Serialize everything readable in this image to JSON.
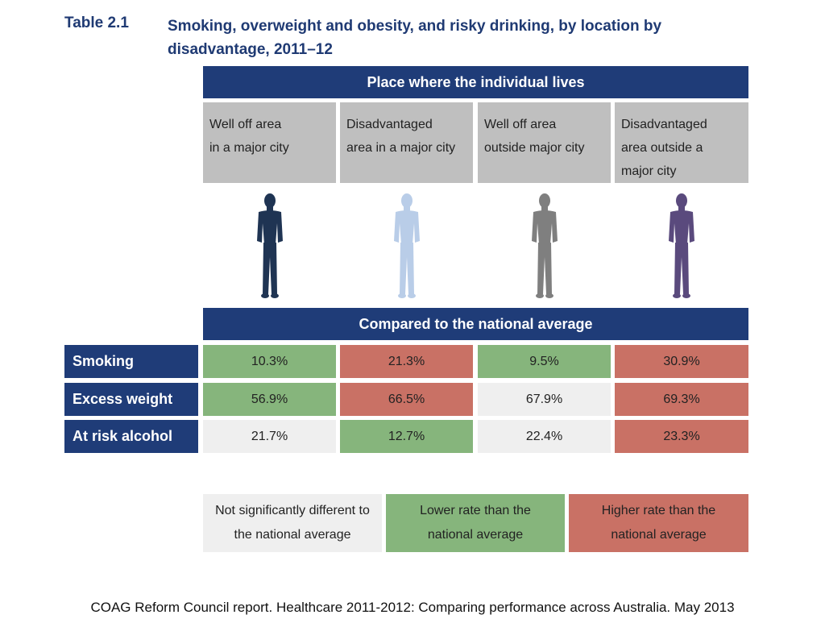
{
  "table_number": "Table 2.1",
  "table_title": "Smoking, overweight and obesity, and risky drinking, by location by disadvantage, 2011–12",
  "place_header": "Place where the individual lives",
  "locations": [
    {
      "line1": "Well off area",
      "line2": "in a major city",
      "line3": "",
      "color": "#1f3453"
    },
    {
      "line1": "Disadvantaged",
      "line2": "area in a major city",
      "line3": "",
      "color": "#b9cde8"
    },
    {
      "line1": "Well off area",
      "line2": "outside major city",
      "line3": "",
      "color": "#7f7f7f"
    },
    {
      "line1": "Disadvantaged",
      "line2": "area outside a",
      "line3": "major city",
      "color": "#5a4a7d"
    }
  ],
  "compared_header": "Compared to the national average",
  "rows": [
    {
      "label": "Smoking",
      "values": [
        "10.3%",
        "21.3%",
        "9.5%",
        "30.9%"
      ],
      "status": [
        "lower",
        "higher",
        "lower",
        "higher"
      ]
    },
    {
      "label": "Excess weight",
      "values": [
        "56.9%",
        "66.5%",
        "67.9%",
        "69.3%"
      ],
      "status": [
        "lower",
        "higher",
        "ns",
        "higher"
      ]
    },
    {
      "label": "At risk alcohol",
      "values": [
        "21.7%",
        "12.7%",
        "22.4%",
        "23.3%"
      ],
      "status": [
        "ns",
        "lower",
        "ns",
        "higher"
      ]
    }
  ],
  "legend": {
    "ns": {
      "line1": "Not significantly different to",
      "line2": "the national average"
    },
    "lower": {
      "line1": "Lower rate than the",
      "line2": "national average"
    },
    "higher": {
      "line1": "Higher rate than the",
      "line2": "national average"
    }
  },
  "colors": {
    "navy": "#1f3c78",
    "lower": "#86b57c",
    "higher": "#c97165",
    "ns": "#efefef",
    "location_header": "#bfbfbf"
  },
  "source": "COAG Reform Council report. Healthcare 2011-2012: Comparing performance across Australia.  May 2013"
}
